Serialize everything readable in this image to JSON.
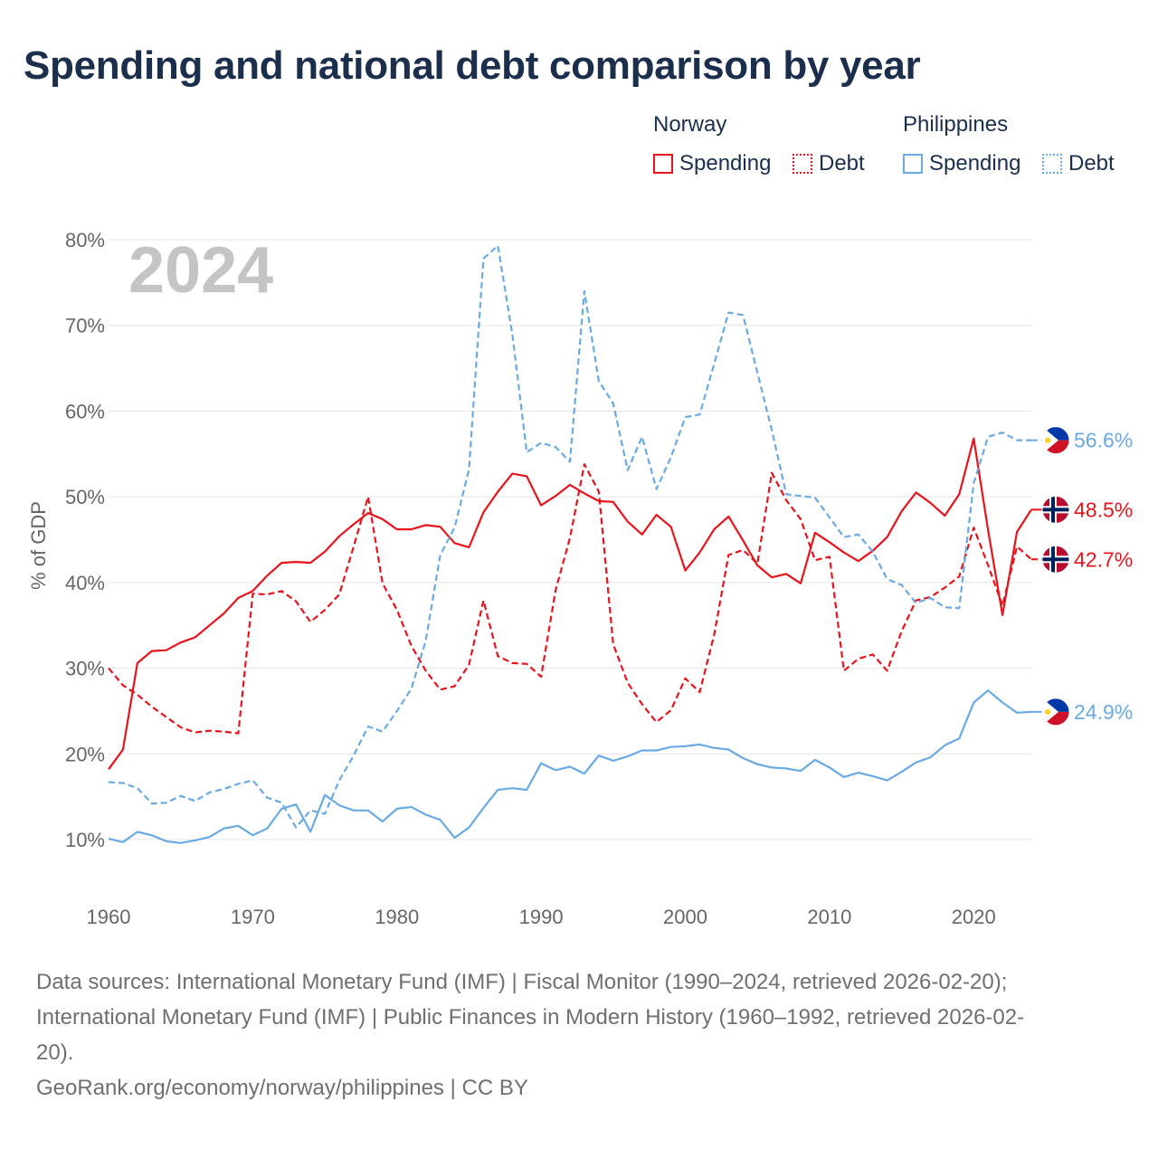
{
  "title": "Spending and national debt comparison by year",
  "legend": {
    "groups": [
      {
        "name": "Norway",
        "items": [
          {
            "label": "Spending",
            "style": "solid",
            "color": "#e8131b"
          },
          {
            "label": "Debt",
            "style": "dotted",
            "color": "#e8131b"
          }
        ]
      },
      {
        "name": "Philippines",
        "items": [
          {
            "label": "Spending",
            "style": "solid",
            "color": "#6aaae4"
          },
          {
            "label": "Debt",
            "style": "dotted",
            "color": "#6aaae4"
          }
        ]
      }
    ]
  },
  "chart_data": {
    "type": "line",
    "year_watermark": "2024",
    "ylabel": "% of GDP",
    "xlabel": "",
    "xlim": [
      1960,
      2024
    ],
    "ylim": [
      10,
      80
    ],
    "x_ticks": [
      1960,
      1970,
      1980,
      1990,
      2000,
      2010,
      2020
    ],
    "y_ticks": [
      10,
      20,
      30,
      40,
      50,
      60,
      70,
      80
    ],
    "y_tick_suffix": "%",
    "grid": true,
    "x": [
      1960,
      1961,
      1962,
      1963,
      1964,
      1965,
      1966,
      1967,
      1968,
      1969,
      1970,
      1971,
      1972,
      1973,
      1974,
      1975,
      1976,
      1977,
      1978,
      1979,
      1980,
      1981,
      1982,
      1983,
      1984,
      1985,
      1986,
      1987,
      1988,
      1989,
      1990,
      1991,
      1992,
      1993,
      1994,
      1995,
      1996,
      1997,
      1998,
      1999,
      2000,
      2001,
      2002,
      2003,
      2004,
      2005,
      2006,
      2007,
      2008,
      2009,
      2010,
      2011,
      2012,
      2013,
      2014,
      2015,
      2016,
      2017,
      2018,
      2019,
      2020,
      2021,
      2022,
      2023,
      2024
    ],
    "series": [
      {
        "name": "Norway Spending",
        "country": "Norway",
        "measure": "Spending",
        "color": "#e8131b",
        "dashed": false,
        "values": [
          18.2,
          20.5,
          30.6,
          32.0,
          32.1,
          33.0,
          33.6,
          35.0,
          36.4,
          38.2,
          39.0,
          40.8,
          42.3,
          42.4,
          42.3,
          43.6,
          45.4,
          46.8,
          48.1,
          47.4,
          46.2,
          46.2,
          46.7,
          46.5,
          44.6,
          44.1,
          48.2,
          50.6,
          52.7,
          52.4,
          49.0,
          50.1,
          51.4,
          50.4,
          49.5,
          49.4,
          47.1,
          45.6,
          47.9,
          46.5,
          41.4,
          43.5,
          46.2,
          47.7,
          44.9,
          42.0,
          40.6,
          41.0,
          39.9,
          45.8,
          44.7,
          43.5,
          42.5,
          43.7,
          45.3,
          48.3,
          50.5,
          49.3,
          47.8,
          50.3,
          56.8,
          46.1,
          36.2,
          45.9,
          48.5
        ]
      },
      {
        "name": "Norway Debt",
        "country": "Norway",
        "measure": "Debt",
        "color": "#e8131b",
        "dashed": true,
        "values": [
          30.0,
          28.0,
          26.9,
          25.5,
          24.3,
          23.1,
          22.5,
          22.7,
          22.6,
          22.4,
          38.7,
          38.6,
          39.0,
          37.8,
          35.4,
          36.8,
          38.6,
          44.2,
          50.0,
          39.9,
          36.8,
          32.6,
          29.7,
          27.5,
          27.9,
          30.4,
          37.9,
          31.4,
          30.6,
          30.5,
          29.0,
          39.1,
          45.2,
          53.8,
          50.6,
          32.8,
          28.3,
          25.8,
          23.7,
          25.1,
          28.8,
          27.2,
          33.9,
          43.2,
          43.8,
          42.2,
          52.8,
          49.6,
          47.4,
          42.6,
          43.0,
          29.7,
          31.1,
          31.6,
          29.7,
          34.3,
          37.9,
          38.3,
          39.4,
          40.7,
          46.4,
          42.0,
          37.3,
          44.2,
          42.7
        ]
      },
      {
        "name": "Philippines Spending",
        "country": "Philippines",
        "measure": "Spending",
        "color": "#6aaae4",
        "dashed": false,
        "values": [
          10.1,
          9.7,
          10.9,
          10.5,
          9.8,
          9.6,
          9.9,
          10.3,
          11.3,
          11.6,
          10.5,
          11.3,
          13.6,
          14.1,
          10.9,
          15.2,
          14.0,
          13.4,
          13.4,
          12.1,
          13.6,
          13.8,
          12.9,
          12.3,
          10.2,
          11.4,
          13.7,
          15.8,
          16.0,
          15.8,
          18.9,
          18.1,
          18.5,
          17.7,
          19.8,
          19.2,
          19.7,
          20.4,
          20.4,
          20.8,
          20.9,
          21.1,
          20.7,
          20.5,
          19.5,
          18.8,
          18.4,
          18.3,
          18.0,
          19.3,
          18.4,
          17.3,
          17.8,
          17.4,
          16.9,
          17.9,
          19.0,
          19.6,
          21.0,
          21.8,
          26.0,
          27.4,
          26.0,
          24.8,
          24.9
        ]
      },
      {
        "name": "Philippines Debt",
        "country": "Philippines",
        "measure": "Debt",
        "color": "#6aaae4",
        "dashed": true,
        "values": [
          16.7,
          16.6,
          16.0,
          14.2,
          14.3,
          15.1,
          14.5,
          15.5,
          15.9,
          16.5,
          16.9,
          14.9,
          14.3,
          11.4,
          13.4,
          13.0,
          16.9,
          19.8,
          23.2,
          22.6,
          25.0,
          27.6,
          33.2,
          43.2,
          46.4,
          53.2,
          77.8,
          79.3,
          69.0,
          55.2,
          56.3,
          55.8,
          54.1,
          74.0,
          63.5,
          60.9,
          53.1,
          57.0,
          50.9,
          54.6,
          59.3,
          59.6,
          65.5,
          71.5,
          71.2,
          64.5,
          57.8,
          50.3,
          50.1,
          49.9,
          47.6,
          45.3,
          45.6,
          43.6,
          40.4,
          39.7,
          37.6,
          38.2,
          37.1,
          37.0,
          51.6,
          57.0,
          57.5,
          56.6,
          56.6
        ]
      }
    ],
    "end_labels": [
      {
        "series": "Philippines Debt",
        "text": "56.6%",
        "flag": "philippines-flag",
        "color": "#6aaae4"
      },
      {
        "series": "Norway Spending",
        "text": "48.5%",
        "flag": "norway-flag",
        "color": "#e8131b"
      },
      {
        "series": "Norway Debt",
        "text": "42.7%",
        "flag": "norway-flag",
        "color": "#e8131b"
      },
      {
        "series": "Philippines Spending",
        "text": "24.9%",
        "flag": "philippines-flag",
        "color": "#6aaae4"
      }
    ]
  },
  "footer": {
    "sources_line1": "Data sources: International Monetary Fund (IMF) | Fiscal Monitor (1990–2024, retrieved 2026-02-20);",
    "sources_line2": "International Monetary Fund (IMF) | Public Finances in Modern History (1960–1992, retrieved 2026-02-",
    "sources_line3": "20).",
    "attribution": "GeoRank.org/economy/norway/philippines | CC BY"
  }
}
